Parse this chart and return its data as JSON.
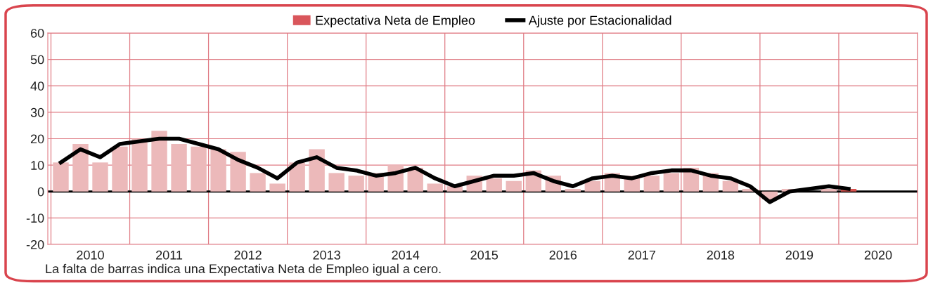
{
  "chart_data": {
    "type": "bar",
    "x": [
      2010.125,
      2010.375,
      2010.625,
      2010.875,
      2011.125,
      2011.375,
      2011.625,
      2011.875,
      2012.125,
      2012.375,
      2012.625,
      2012.875,
      2013.125,
      2013.375,
      2013.625,
      2013.875,
      2014.125,
      2014.375,
      2014.625,
      2014.875,
      2015.125,
      2015.375,
      2015.625,
      2015.875,
      2016.125,
      2016.375,
      2016.625,
      2016.875,
      2017.125,
      2017.375,
      2017.625,
      2017.875,
      2018.125,
      2018.375,
      2018.625,
      2018.875,
      2019.125,
      2019.375,
      2019.625,
      2019.875,
      2020.125
    ],
    "series": [
      {
        "name": "Expectativa Neta de Empleo",
        "color": "#d9565b",
        "colors": [
          "#ecb9ba",
          "#ecb9ba",
          "#ecb9ba",
          "#ecb9ba",
          "#ecb9ba",
          "#ecb9ba",
          "#ecb9ba",
          "#ecb9ba",
          "#ecb9ba",
          "#ecb9ba",
          "#ecb9ba",
          "#ecb9ba",
          "#ecb9ba",
          "#ecb9ba",
          "#ecb9ba",
          "#ecb9ba",
          "#ecb9ba",
          "#ecb9ba",
          "#ecb9ba",
          "#ecb9ba",
          "#ecb9ba",
          "#ecb9ba",
          "#ecb9ba",
          "#ecb9ba",
          "#ecb9ba",
          "#ecb9ba",
          "#ecb9ba",
          "#ecb9ba",
          "#ecb9ba",
          "#ecb9ba",
          "#ecb9ba",
          "#ecb9ba",
          "#ecb9ba",
          "#ecb9ba",
          "#ecb9ba",
          "#ecb9ba",
          "#ecb9ba",
          "#ecb9ba",
          "#ecb9ba",
          "#ecb9ba",
          "#d9534f"
        ],
        "values": [
          11,
          18,
          11,
          17,
          20,
          23,
          18,
          17,
          16,
          15,
          7,
          3,
          11,
          16,
          7,
          6,
          7,
          10,
          9,
          3,
          2,
          6,
          5,
          4,
          8,
          6,
          1,
          4,
          7,
          6,
          6,
          7,
          9,
          7,
          4,
          1,
          -3,
          1,
          0,
          1,
          1
        ]
      },
      {
        "name": "Ajuste por Estacionalidad",
        "type": "line",
        "color": "#000000",
        "values": [
          11,
          16,
          13,
          18,
          19,
          20,
          20,
          18,
          16,
          12,
          9,
          5,
          11,
          13,
          9,
          8,
          6,
          7,
          9,
          5,
          2,
          4,
          6,
          6,
          7,
          4,
          2,
          5,
          6,
          5,
          7,
          8,
          8,
          6,
          5,
          2,
          -4,
          0,
          1,
          2,
          1
        ]
      }
    ],
    "xlim": [
      2009.96,
      2021.0
    ],
    "xticks": [
      {
        "value": 2010,
        "label": null
      },
      {
        "value": 2010.5,
        "label": "2010"
      },
      {
        "value": 2011,
        "label": null
      },
      {
        "value": 2011.5,
        "label": "2011"
      },
      {
        "value": 2012,
        "label": null
      },
      {
        "value": 2012.5,
        "label": "2012"
      },
      {
        "value": 2013,
        "label": null
      },
      {
        "value": 2013.5,
        "label": "2013"
      },
      {
        "value": 2014,
        "label": null
      },
      {
        "value": 2014.5,
        "label": "2014"
      },
      {
        "value": 2015,
        "label": null
      },
      {
        "value": 2015.5,
        "label": "2015"
      },
      {
        "value": 2016,
        "label": null
      },
      {
        "value": 2016.5,
        "label": "2016"
      },
      {
        "value": 2017,
        "label": null
      },
      {
        "value": 2017.5,
        "label": "2017"
      },
      {
        "value": 2018,
        "label": null
      },
      {
        "value": 2018.5,
        "label": "2018"
      },
      {
        "value": 2019,
        "label": null
      },
      {
        "value": 2019.5,
        "label": "2019"
      },
      {
        "value": 2020,
        "label": null
      },
      {
        "value": 2020.5,
        "label": "2020"
      },
      {
        "value": 2021,
        "label": null
      }
    ],
    "ylim": [
      -20,
      60
    ],
    "yticks": [
      -20,
      -10,
      0,
      10,
      20,
      30,
      40,
      50,
      60
    ],
    "grid": true,
    "legend": "top",
    "ref_lines": [
      {
        "axis": "y",
        "value": 0,
        "color": "#000000"
      }
    ],
    "annotations": [
      "La falta de barras indica una Expectativa Neta de Empleo igual a cero."
    ]
  }
}
